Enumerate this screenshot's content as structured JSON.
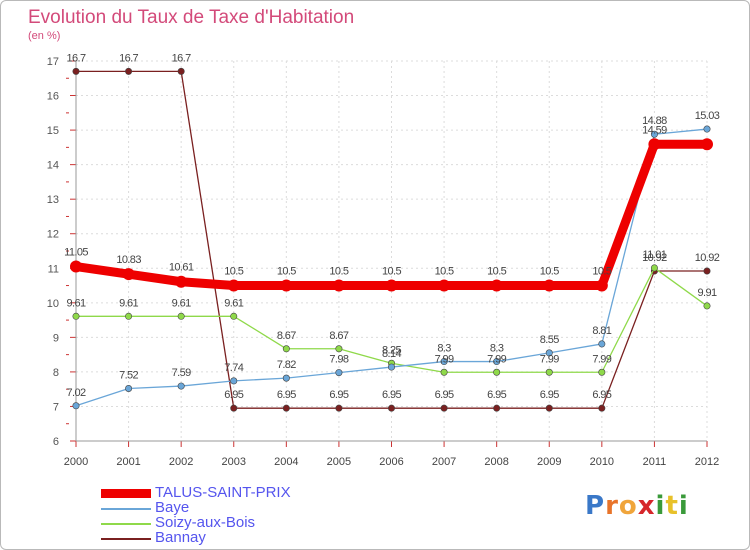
{
  "title": "Evolution du Taux de Taxe d'Habitation",
  "unit": "(en %)",
  "brand": {
    "letters": [
      "P",
      "r",
      "o",
      "x",
      "i",
      "t",
      "i"
    ],
    "colors": [
      "#3a78c8",
      "#e8742a",
      "#f0a53b",
      "#d6262b",
      "#3a9a3a",
      "#e8c12a",
      "#3a9a3a"
    ]
  },
  "chart_data": {
    "type": "line",
    "title": "Evolution du Taux de Taxe d'Habitation",
    "ylabel": "(en %)",
    "xlabel": "",
    "ylim": [
      6,
      17
    ],
    "yticks": [
      6,
      7,
      8,
      9,
      10,
      11,
      12,
      13,
      14,
      15,
      16,
      17
    ],
    "x": [
      "2000",
      "2001",
      "2002",
      "2003",
      "2004",
      "2005",
      "2006",
      "2007",
      "2008",
      "2009",
      "2010",
      "2011",
      "2012"
    ],
    "grid": true,
    "legend_position": "bottom-left",
    "series": [
      {
        "name": "TALUS-SAINT-PRIX",
        "color": "#ee0000",
        "values": [
          11.05,
          10.83,
          10.61,
          10.5,
          10.5,
          10.5,
          10.5,
          10.5,
          10.5,
          10.5,
          10.5,
          14.59,
          14.59
        ],
        "labels": [
          "11.05",
          "10.83",
          "10.61",
          "10.5",
          "10.5",
          "10.5",
          "10.5",
          "10.5",
          "10.5",
          "10.5",
          "10.5",
          "14.59",
          ""
        ]
      },
      {
        "name": "Baye",
        "color": "#6aa6d8",
        "values": [
          7.02,
          7.52,
          7.59,
          7.74,
          7.82,
          7.98,
          8.14,
          8.3,
          8.3,
          8.55,
          8.81,
          14.88,
          15.03
        ],
        "labels": [
          "7.02",
          "7.52",
          "7.59",
          "7.74",
          "7.82",
          "7.98",
          "8.14",
          "8.3",
          "8.3",
          "8.55",
          "8.81",
          "14.88",
          "15.03"
        ]
      },
      {
        "name": "Soizy-aux-Bois",
        "color": "#8fd94a",
        "values": [
          9.61,
          9.61,
          9.61,
          9.61,
          8.67,
          8.67,
          8.25,
          7.99,
          7.99,
          7.99,
          7.99,
          11.01,
          9.91
        ],
        "labels": [
          "9.61",
          "9.61",
          "9.61",
          "9.61",
          "8.67",
          "8.67",
          "8.25",
          "7.99",
          "7.99",
          "7.99",
          "7.99",
          "11.01",
          "9.91"
        ]
      },
      {
        "name": "Bannay",
        "color": "#7a2020",
        "values": [
          16.7,
          16.7,
          16.7,
          6.95,
          6.95,
          6.95,
          6.95,
          6.95,
          6.95,
          6.95,
          6.95,
          10.92,
          10.92
        ],
        "labels": [
          "16.7",
          "16.7",
          "16.7",
          "6.95",
          "6.95",
          "6.95",
          "6.95",
          "6.95",
          "6.95",
          "6.95",
          "6.95",
          "10.92",
          "10.92"
        ]
      }
    ]
  }
}
